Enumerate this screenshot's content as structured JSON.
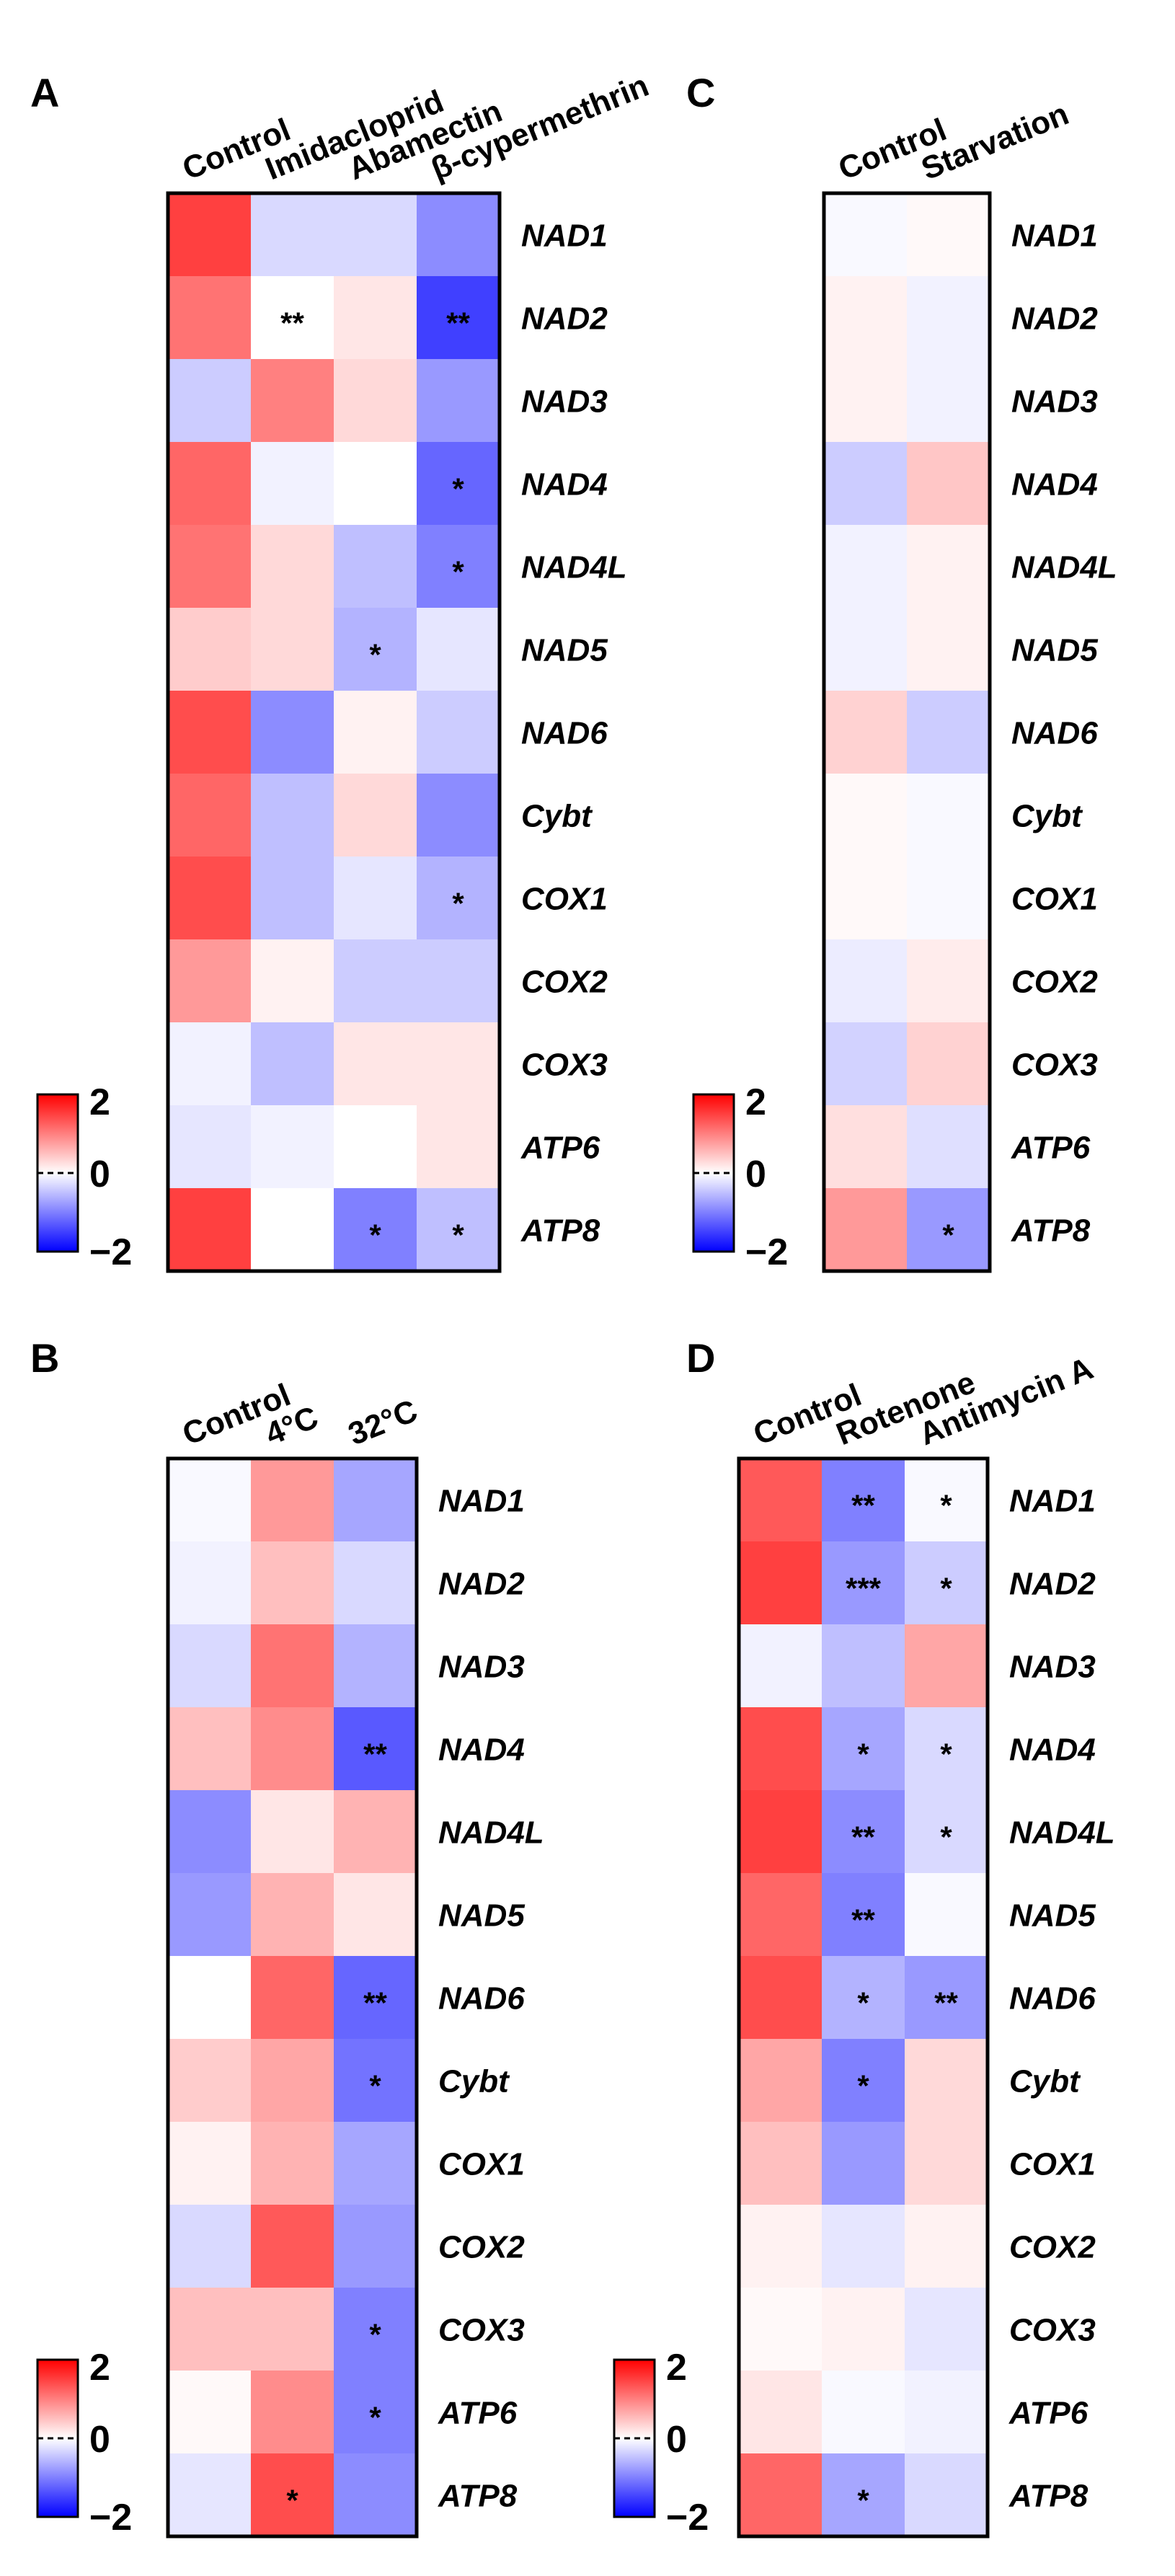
{
  "colors": {
    "low": "#0000ff",
    "mid": "#ffffff",
    "high": "#ff0000",
    "text": "#000000"
  },
  "chart_data": [
    {
      "type": "heatmap",
      "panel": "A",
      "columns": [
        "Control",
        "Imidacloprid",
        "Abamectin",
        "β-cypermethrin"
      ],
      "rows": [
        "NAD1",
        "NAD2",
        "NAD3",
        "NAD4",
        "NAD4L",
        "NAD5",
        "NAD6",
        "Cybt",
        "COX1",
        "COX2",
        "COX3",
        "ATP6",
        "ATP8"
      ],
      "values": [
        [
          1.5,
          -0.3,
          -0.3,
          -0.9
        ],
        [
          1.1,
          0.0,
          0.2,
          -1.5
        ],
        [
          -0.4,
          1.0,
          0.3,
          -0.8
        ],
        [
          1.2,
          -0.1,
          0.0,
          -1.2
        ],
        [
          1.1,
          0.3,
          -0.5,
          -1.0
        ],
        [
          0.4,
          0.3,
          -0.6,
          -0.2
        ],
        [
          1.4,
          -0.9,
          0.1,
          -0.4
        ],
        [
          1.2,
          -0.5,
          0.3,
          -0.9
        ],
        [
          1.4,
          -0.5,
          -0.2,
          -0.6
        ],
        [
          0.8,
          0.1,
          -0.4,
          -0.4
        ],
        [
          -0.1,
          -0.5,
          0.2,
          0.2
        ],
        [
          -0.2,
          -0.1,
          0.0,
          0.2
        ],
        [
          1.5,
          0.0,
          -1.0,
          -0.5
        ]
      ],
      "significance": [
        [
          "",
          "",
          "",
          ""
        ],
        [
          "",
          "**",
          "",
          "**"
        ],
        [
          "",
          "",
          "",
          ""
        ],
        [
          "",
          "",
          "",
          "*"
        ],
        [
          "",
          "",
          "",
          "*"
        ],
        [
          "",
          "",
          "*",
          ""
        ],
        [
          "",
          "",
          "",
          ""
        ],
        [
          "",
          "",
          "",
          ""
        ],
        [
          "",
          "",
          "",
          "*"
        ],
        [
          "",
          "",
          "",
          ""
        ],
        [
          "",
          "",
          "",
          ""
        ],
        [
          "",
          "",
          "",
          ""
        ],
        [
          "",
          "",
          "*",
          "*"
        ]
      ],
      "color_range": [
        -2,
        2
      ],
      "colorbar_ticks": [
        "2",
        "0",
        "−2"
      ]
    },
    {
      "type": "heatmap",
      "panel": "B",
      "columns": [
        "Control",
        "4°C",
        "32°C"
      ],
      "rows": [
        "NAD1",
        "NAD2",
        "NAD3",
        "NAD4",
        "NAD4L",
        "NAD5",
        "NAD6",
        "Cybt",
        "COX1",
        "COX2",
        "COX3",
        "ATP6",
        "ATP8"
      ],
      "values": [
        [
          -0.05,
          0.8,
          -0.7
        ],
        [
          -0.1,
          0.5,
          -0.3
        ],
        [
          -0.3,
          1.1,
          -0.6
        ],
        [
          0.5,
          0.9,
          -1.3
        ],
        [
          -0.9,
          0.2,
          0.6
        ],
        [
          -0.8,
          0.6,
          0.2
        ],
        [
          0.0,
          1.2,
          -1.2
        ],
        [
          0.4,
          0.7,
          -1.1
        ],
        [
          0.1,
          0.6,
          -0.7
        ],
        [
          -0.3,
          1.3,
          -0.8
        ],
        [
          0.5,
          0.5,
          -1.0
        ],
        [
          0.05,
          0.9,
          -1.0
        ],
        [
          -0.2,
          1.4,
          -0.9
        ]
      ],
      "significance": [
        [
          "",
          "",
          ""
        ],
        [
          "",
          "",
          ""
        ],
        [
          "",
          "",
          ""
        ],
        [
          "",
          "",
          "**"
        ],
        [
          "",
          "",
          ""
        ],
        [
          "",
          "",
          ""
        ],
        [
          "",
          "",
          "**"
        ],
        [
          "",
          "",
          "*"
        ],
        [
          "",
          "",
          ""
        ],
        [
          "",
          "",
          ""
        ],
        [
          "",
          "",
          "*"
        ],
        [
          "",
          "",
          "*"
        ],
        [
          "",
          "*",
          ""
        ]
      ],
      "color_range": [
        -2,
        2
      ],
      "colorbar_ticks": [
        "2",
        "0",
        "−2"
      ]
    },
    {
      "type": "heatmap",
      "panel": "C",
      "columns": [
        "Control",
        "Starvation"
      ],
      "rows": [
        "NAD1",
        "NAD2",
        "NAD3",
        "NAD4",
        "NAD4L",
        "NAD5",
        "NAD6",
        "Cybt",
        "COX1",
        "COX2",
        "COX3",
        "ATP6",
        "ATP8"
      ],
      "values": [
        [
          -0.05,
          0.05
        ],
        [
          0.1,
          -0.1
        ],
        [
          0.1,
          -0.1
        ],
        [
          -0.4,
          0.45
        ],
        [
          -0.1,
          0.1
        ],
        [
          -0.1,
          0.1
        ],
        [
          0.35,
          -0.4
        ],
        [
          0.05,
          -0.05
        ],
        [
          0.05,
          -0.05
        ],
        [
          -0.15,
          0.15
        ],
        [
          -0.35,
          0.35
        ],
        [
          0.25,
          -0.25
        ],
        [
          0.8,
          -0.8
        ]
      ],
      "significance": [
        [
          "",
          ""
        ],
        [
          "",
          ""
        ],
        [
          "",
          ""
        ],
        [
          "",
          ""
        ],
        [
          "",
          ""
        ],
        [
          "",
          ""
        ],
        [
          "",
          ""
        ],
        [
          "",
          ""
        ],
        [
          "",
          ""
        ],
        [
          "",
          ""
        ],
        [
          "",
          ""
        ],
        [
          "",
          ""
        ],
        [
          "",
          "*"
        ]
      ],
      "color_range": [
        -2,
        2
      ],
      "colorbar_ticks": [
        "2",
        "0",
        "−2"
      ]
    },
    {
      "type": "heatmap",
      "panel": "D",
      "columns": [
        "Control",
        "Rotenone",
        "Antimycin A"
      ],
      "rows": [
        "NAD1",
        "NAD2",
        "NAD3",
        "NAD4",
        "NAD4L",
        "NAD5",
        "NAD6",
        "Cybt",
        "COX1",
        "COX2",
        "COX3",
        "ATP6",
        "ATP8"
      ],
      "values": [
        [
          1.3,
          -1.0,
          -0.05
        ],
        [
          1.5,
          -0.8,
          -0.4
        ],
        [
          -0.1,
          -0.5,
          0.7
        ],
        [
          1.4,
          -0.7,
          -0.3
        ],
        [
          1.5,
          -0.9,
          -0.3
        ],
        [
          1.2,
          -1.0,
          -0.05
        ],
        [
          1.4,
          -0.6,
          -0.8
        ],
        [
          0.7,
          -1.0,
          0.3
        ],
        [
          0.5,
          -0.8,
          0.3
        ],
        [
          0.1,
          -0.2,
          0.1
        ],
        [
          0.05,
          0.1,
          -0.2
        ],
        [
          0.2,
          -0.05,
          -0.1
        ],
        [
          1.2,
          -0.7,
          -0.3
        ]
      ],
      "significance": [
        [
          "",
          "**",
          "*"
        ],
        [
          "",
          "***",
          "*"
        ],
        [
          "",
          "",
          ""
        ],
        [
          "",
          "*",
          "*"
        ],
        [
          "",
          "**",
          "*"
        ],
        [
          "",
          "**",
          ""
        ],
        [
          "",
          "*",
          "**"
        ],
        [
          "",
          "*",
          ""
        ],
        [
          "",
          "",
          ""
        ],
        [
          "",
          "",
          ""
        ],
        [
          "",
          "",
          ""
        ],
        [
          "",
          "",
          ""
        ],
        [
          "",
          "*",
          ""
        ]
      ],
      "color_range": [
        -2,
        2
      ],
      "colorbar_ticks": [
        "2",
        "0",
        "−2"
      ]
    }
  ]
}
